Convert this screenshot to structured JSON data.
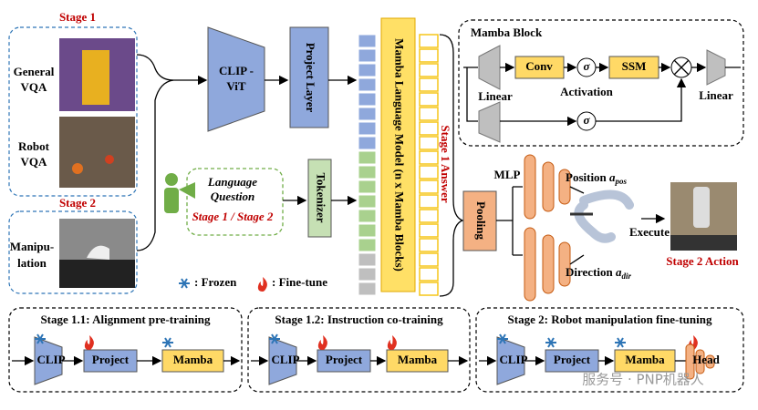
{
  "stage1": {
    "title": "Stage 1",
    "general": [
      "General",
      "VQA"
    ],
    "robot": [
      "Robot",
      "VQA"
    ]
  },
  "stage2": {
    "title": "Stage 2",
    "manipulation": [
      "Manipu-",
      "lation"
    ]
  },
  "clip_vit": [
    "CLIP -",
    "ViT"
  ],
  "project_layer": "Project Layer",
  "tokenizer": "Tokenizer",
  "language_model": "Mamba Language Model (n x Mamba Blocks)",
  "answer_label": "Stage 1 Answer",
  "question": {
    "lines": [
      "Language",
      "Question"
    ],
    "stages": "Stage 1 / Stage 2"
  },
  "mamba_block": {
    "title": "Mamba Block",
    "linear_in": "Linear",
    "conv": "Conv",
    "sigma_1": "σ",
    "activation": "Activation",
    "ssm": "SSM",
    "sigma_2": "σ",
    "linear_out": "Linear"
  },
  "head": {
    "pooling": "Pooling",
    "mlp": "MLP",
    "position": {
      "label": "Position",
      "symbol": "a",
      "subscript": "pos"
    },
    "direction": {
      "label": "Direction",
      "symbol": "a",
      "subscript": "dir"
    },
    "execute": "Execute",
    "action": "Stage 2 Action"
  },
  "legend": {
    "frozen": ": Frozen",
    "finetune": ": Fine-tune"
  },
  "training_stages": [
    {
      "title": "Stage 1.1: Alignment pre-training",
      "modules": [
        "CLIP",
        "Project",
        "Mamba"
      ]
    },
    {
      "title": "Stage 1.2: Instruction co-training",
      "modules": [
        "CLIP",
        "Project",
        "Mamba"
      ]
    },
    {
      "title": "Stage 2: Robot manipulation fine-tuning",
      "modules": [
        "CLIP",
        "Project",
        "Mamba",
        "Head"
      ]
    }
  ],
  "watermark": "服务号 · PNP机器人"
}
